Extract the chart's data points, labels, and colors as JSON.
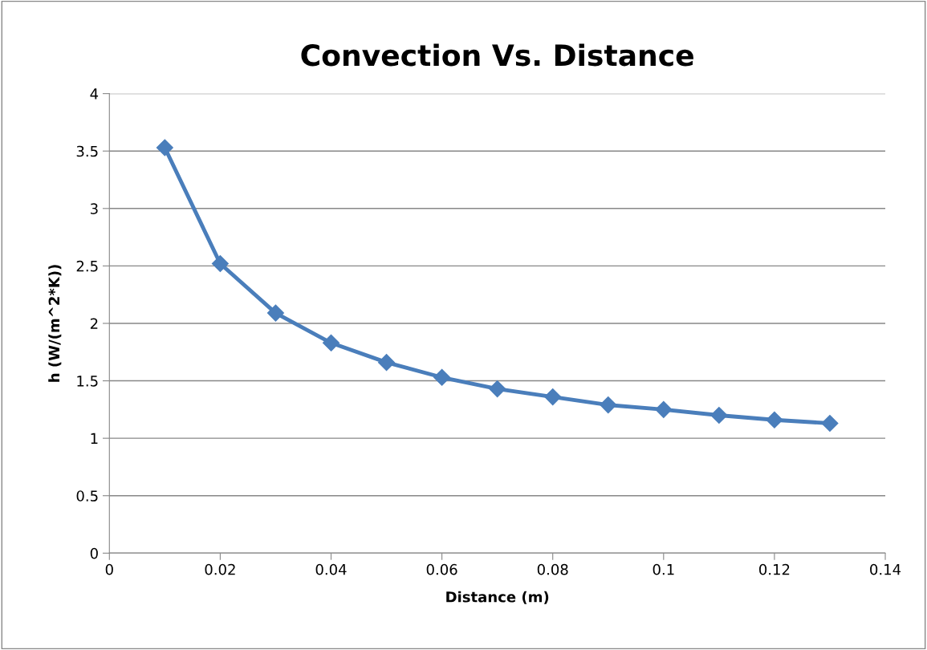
{
  "chart_data": {
    "type": "line",
    "title": "Convection Vs. Distance",
    "xlabel": "Distance (m)",
    "ylabel": "h (W/(m^2*K))",
    "x": [
      0.01,
      0.02,
      0.03,
      0.04,
      0.05,
      0.06,
      0.07,
      0.08,
      0.09,
      0.1,
      0.11,
      0.12,
      0.13
    ],
    "series": [
      {
        "color": "#4a7ebb",
        "values": [
          3.53,
          2.52,
          2.09,
          1.83,
          1.66,
          1.53,
          1.43,
          1.36,
          1.29,
          1.25,
          1.2,
          1.16,
          1.13
        ]
      }
    ],
    "xlim": [
      0,
      0.14
    ],
    "xticks": [
      0,
      0.02,
      0.04,
      0.06,
      0.08,
      0.1,
      0.12,
      0.14
    ],
    "ylim": [
      0,
      4
    ],
    "yticks": [
      0,
      0.5,
      1,
      1.5,
      2,
      2.5,
      3,
      3.5,
      4
    ],
    "grid": "y",
    "legend": false,
    "marker": "diamond",
    "line_style": "solid"
  }
}
